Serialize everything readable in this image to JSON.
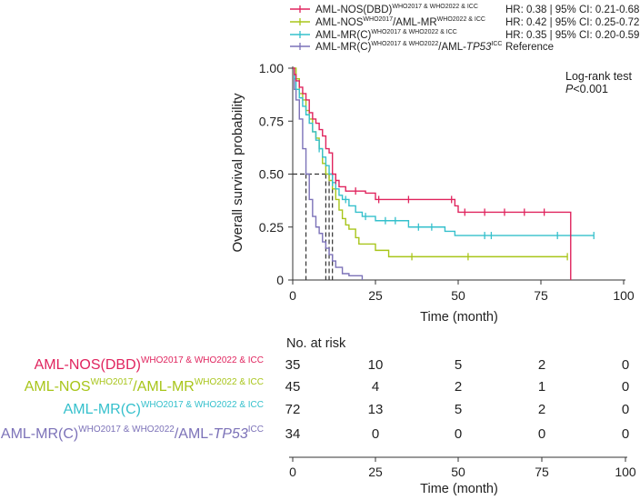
{
  "chart_data": {
    "type": "line",
    "subtype": "kaplan-meier",
    "ylabel": "Overall survival probability",
    "xlabel": "Time (month)",
    "xlim": [
      0,
      100
    ],
    "ylim": [
      0,
      1
    ],
    "x_ticks": [
      "0",
      "25",
      "50",
      "75",
      "100"
    ],
    "y_ticks": [
      "0",
      "0.25",
      "0.50",
      "0.75",
      "1.00"
    ],
    "annotation_title": "Log-rank test",
    "annotation_p_label": "P",
    "annotation_p_value": "<0.001",
    "median_line_y": 0.5,
    "series": [
      {
        "name_main": "AML-NOS(DBD)",
        "name_sup": "WHO2017 & WHO2022 & ICC",
        "name_mid": "",
        "name_mid_sup": "",
        "stat": "HR: 0.38 | 95% CI: 0.21-0.68",
        "color": "#e0245e",
        "median": 12,
        "steps": [
          [
            0,
            1
          ],
          [
            0.5,
            0.97
          ],
          [
            1,
            0.94
          ],
          [
            2,
            0.91
          ],
          [
            3,
            0.88
          ],
          [
            4,
            0.85
          ],
          [
            5,
            0.79
          ],
          [
            6,
            0.76
          ],
          [
            7,
            0.74
          ],
          [
            8,
            0.71
          ],
          [
            9,
            0.68
          ],
          [
            10,
            0.62
          ],
          [
            11,
            0.6
          ],
          [
            12,
            0.5
          ],
          [
            13,
            0.47
          ],
          [
            14,
            0.44
          ],
          [
            16,
            0.42
          ],
          [
            18,
            0.42
          ],
          [
            22,
            0.41
          ],
          [
            25,
            0.38
          ],
          [
            40,
            0.38
          ],
          [
            49,
            0.35
          ],
          [
            50,
            0.32
          ],
          [
            84,
            0.32
          ],
          [
            84,
            0
          ]
        ],
        "censors": [
          [
            13,
            0.47
          ],
          [
            19,
            0.42
          ],
          [
            26,
            0.38
          ],
          [
            35,
            0.38
          ],
          [
            48,
            0.38
          ],
          [
            52,
            0.32
          ],
          [
            58,
            0.32
          ],
          [
            64,
            0.32
          ],
          [
            70,
            0.32
          ],
          [
            76,
            0.32
          ]
        ]
      },
      {
        "name_main": "AML-NOS",
        "name_sup": "WHO2017",
        "name_mid": "/AML-MR",
        "name_mid_sup": "WHO2022 & ICC",
        "stat": "HR: 0.42 | 95% CI: 0.25-0.72",
        "color": "#a8c51a",
        "median": 10,
        "steps": [
          [
            0,
            1
          ],
          [
            1,
            0.95
          ],
          [
            2,
            0.88
          ],
          [
            3,
            0.85
          ],
          [
            4,
            0.8
          ],
          [
            5,
            0.76
          ],
          [
            6,
            0.7
          ],
          [
            7,
            0.67
          ],
          [
            8,
            0.62
          ],
          [
            9,
            0.55
          ],
          [
            10,
            0.5
          ],
          [
            11,
            0.47
          ],
          [
            12,
            0.43
          ],
          [
            13,
            0.38
          ],
          [
            14,
            0.33
          ],
          [
            15,
            0.29
          ],
          [
            16,
            0.26
          ],
          [
            17,
            0.24
          ],
          [
            19,
            0.2
          ],
          [
            20,
            0.17
          ],
          [
            24,
            0.17
          ],
          [
            25,
            0.14
          ],
          [
            28,
            0.14
          ],
          [
            29,
            0.11
          ],
          [
            83,
            0.11
          ]
        ],
        "censors": [
          [
            36,
            0.11
          ],
          [
            53,
            0.11
          ],
          [
            83,
            0.11
          ]
        ]
      },
      {
        "name_main": "AML-MR(C)",
        "name_sup": "WHO2017 & WHO2022 & ICC",
        "name_mid": "",
        "name_mid_sup": "",
        "stat": "HR: 0.35 | 95% CI: 0.20-0.59",
        "color": "#35c0cc",
        "median": 11,
        "steps": [
          [
            0,
            1
          ],
          [
            0.5,
            0.95
          ],
          [
            1,
            0.9
          ],
          [
            2,
            0.86
          ],
          [
            3,
            0.82
          ],
          [
            4,
            0.78
          ],
          [
            5,
            0.74
          ],
          [
            6,
            0.7
          ],
          [
            7,
            0.66
          ],
          [
            8,
            0.62
          ],
          [
            9,
            0.58
          ],
          [
            10,
            0.54
          ],
          [
            11,
            0.5
          ],
          [
            12,
            0.46
          ],
          [
            13,
            0.43
          ],
          [
            14,
            0.4
          ],
          [
            15,
            0.38
          ],
          [
            17,
            0.35
          ],
          [
            19,
            0.32
          ],
          [
            21,
            0.3
          ],
          [
            24,
            0.3
          ],
          [
            25,
            0.28
          ],
          [
            33,
            0.28
          ],
          [
            35,
            0.25
          ],
          [
            44,
            0.25
          ],
          [
            46,
            0.23
          ],
          [
            49,
            0.21
          ],
          [
            91,
            0.21
          ]
        ],
        "censors": [
          [
            8,
            0.62
          ],
          [
            12,
            0.46
          ],
          [
            16,
            0.38
          ],
          [
            22,
            0.3
          ],
          [
            28,
            0.28
          ],
          [
            31,
            0.28
          ],
          [
            38,
            0.25
          ],
          [
            42,
            0.25
          ],
          [
            58,
            0.21
          ],
          [
            60,
            0.21
          ],
          [
            80,
            0.21
          ],
          [
            91,
            0.21
          ]
        ]
      },
      {
        "name_main": "AML-MR(C)",
        "name_sup": "WHO2017 & WHO2022",
        "name_mid": "/AML-",
        "name_mid_sup": "",
        "name_italic": "TP53",
        "name_end_sup": "ICC",
        "stat": "Reference",
        "color": "#7c72b8",
        "median": 4,
        "steps": [
          [
            0,
            1
          ],
          [
            0.5,
            0.9
          ],
          [
            1,
            0.85
          ],
          [
            2,
            0.76
          ],
          [
            3,
            0.62
          ],
          [
            4,
            0.5
          ],
          [
            5,
            0.38
          ],
          [
            6,
            0.3
          ],
          [
            7,
            0.25
          ],
          [
            8,
            0.22
          ],
          [
            9,
            0.18
          ],
          [
            10,
            0.15
          ],
          [
            11,
            0.12
          ],
          [
            12,
            0.09
          ],
          [
            13,
            0.06
          ],
          [
            15,
            0.03
          ],
          [
            17,
            0.02
          ],
          [
            20,
            0.02
          ],
          [
            21,
            0
          ]
        ],
        "censors": []
      }
    ],
    "risk_table": {
      "title": "No. at risk",
      "times": [
        "0",
        "25",
        "50",
        "75",
        "100"
      ],
      "rows": [
        {
          "values": [
            "35",
            "10",
            "5",
            "2",
            "0"
          ]
        },
        {
          "values": [
            "45",
            "4",
            "2",
            "1",
            "0"
          ]
        },
        {
          "values": [
            "72",
            "13",
            "5",
            "2",
            "0"
          ]
        },
        {
          "values": [
            "34",
            "0",
            "0",
            "0",
            "0"
          ]
        }
      ],
      "xlabel": "Time (month)"
    }
  }
}
